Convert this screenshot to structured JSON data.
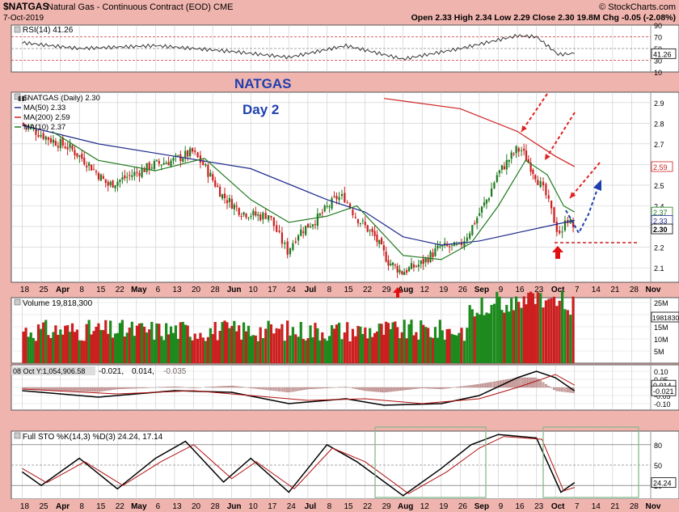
{
  "header": {
    "symbol": "$NATGAS",
    "name": "Natural Gas - Continuous Contract (EOD)",
    "exchange": "CME",
    "date": "7-Oct-2019",
    "copyright": "© StockCharts.com",
    "open_label": "Open",
    "open": "2.33",
    "high_label": "High",
    "high": "2.34",
    "low_label": "Low",
    "low": "2.29",
    "close_label": "Close",
    "close": "2.30",
    "volume": "19.8M",
    "chg_label": "Chg",
    "chg": "-0.05 (-2.08%)"
  },
  "rsi_panel": {
    "label": "RSI(14) 41.26",
    "ticks": [
      "90",
      "70",
      "50",
      "30",
      "10"
    ],
    "ticks_half": [
      "80",
      "60",
      "40",
      "20"
    ],
    "current": "41.26"
  },
  "price_panel": {
    "annotation_title": "NATGAS",
    "annotation_sub": "Day 2",
    "legend": [
      {
        "label": "$NATGAS (Daily) 2.30",
        "color": "#222222"
      },
      {
        "label": "MA(50) 2.33",
        "color": "#1f2a8c"
      },
      {
        "label": "MA(200) 2.59",
        "color": "#cc2222"
      },
      {
        "label": "MA(10) 2.37",
        "color": "#1e7a1e"
      }
    ],
    "ticks": [
      "2.9",
      "2.8",
      "2.7",
      "2.6",
      "2.5",
      "2.4",
      "2.3",
      "2.2",
      "2.1"
    ],
    "tags": [
      {
        "value": "2.59",
        "color": "#cc2222"
      },
      {
        "value": "2.37",
        "color": "#1e7a1e"
      },
      {
        "value": "2.33",
        "color": "#1f2a8c"
      },
      {
        "value": "2.30",
        "color": "#000000"
      }
    ]
  },
  "x_axis": {
    "labels": [
      "18",
      "25",
      "Apr",
      "8",
      "15",
      "22",
      "May",
      "6",
      "13",
      "20",
      "28",
      "Jun",
      "10",
      "17",
      "24",
      "Jul",
      "8",
      "15",
      "22",
      "29",
      "Aug",
      "12",
      "19",
      "26",
      "Sep",
      "9",
      "16",
      "23",
      "Oct",
      "7",
      "14",
      "21",
      "28",
      "Nov"
    ]
  },
  "volume_panel": {
    "label": "Volume 19,818,300",
    "ticks": [
      "25M",
      "20M",
      "15M",
      "10M",
      "5M"
    ],
    "current": "19818300"
  },
  "macd_panel": {
    "readout": "08 Oct Y:1,054,906.58",
    "values": [
      "-0.021",
      "0.014",
      "-0.035"
    ],
    "ticks": [
      "0.10",
      "0.05",
      "0.00",
      "-0.05",
      "-0.10"
    ],
    "tags": [
      "0.014",
      "-0.021"
    ]
  },
  "sto_panel": {
    "label": "Full STO %K(14,3) %D(3) 24.24, 17.14",
    "ticks": [
      "80",
      "50",
      "20"
    ],
    "current": "24.24"
  },
  "chart_data": {
    "type": "line",
    "title": "$NATGAS Natural Gas - Continuous Contract (EOD) CME",
    "ylim": [
      2.03,
      2.95
    ],
    "x_start": "2019-03-18",
    "x_end": "2019-11-04",
    "close_series": [
      [
        "2019-03-18",
        2.8
      ],
      [
        "2019-03-29",
        2.72
      ],
      [
        "2019-04-05",
        2.68
      ],
      [
        "2019-04-12",
        2.6
      ],
      [
        "2019-04-19",
        2.5
      ],
      [
        "2019-04-26",
        2.54
      ],
      [
        "2019-05-06",
        2.6
      ],
      [
        "2019-05-13",
        2.62
      ],
      [
        "2019-05-20",
        2.66
      ],
      [
        "2019-05-24",
        2.6
      ],
      [
        "2019-05-31",
        2.45
      ],
      [
        "2019-06-07",
        2.37
      ],
      [
        "2019-06-14",
        2.35
      ],
      [
        "2019-06-17",
        2.36
      ],
      [
        "2019-06-21",
        2.25
      ],
      [
        "2019-06-24",
        2.18
      ],
      [
        "2019-06-28",
        2.27
      ],
      [
        "2019-07-05",
        2.34
      ],
      [
        "2019-07-12",
        2.44
      ],
      [
        "2019-07-15",
        2.44
      ],
      [
        "2019-07-19",
        2.35
      ],
      [
        "2019-07-26",
        2.25
      ],
      [
        "2019-07-31",
        2.13
      ],
      [
        "2019-08-05",
        2.08
      ],
      [
        "2019-08-12",
        2.12
      ],
      [
        "2019-08-19",
        2.2
      ],
      [
        "2019-08-26",
        2.2
      ],
      [
        "2019-08-30",
        2.28
      ],
      [
        "2019-09-06",
        2.45
      ],
      [
        "2019-09-09",
        2.55
      ],
      [
        "2019-09-16",
        2.67
      ],
      [
        "2019-09-18",
        2.67
      ],
      [
        "2019-09-23",
        2.55
      ],
      [
        "2019-09-27",
        2.45
      ],
      [
        "2019-10-01",
        2.29
      ],
      [
        "2019-10-03",
        2.26
      ],
      [
        "2019-10-04",
        2.35
      ],
      [
        "2019-10-07",
        2.3
      ]
    ],
    "series": [
      {
        "name": "MA(50) 2.33",
        "values": [
          [
            "2019-03-18",
            2.79
          ],
          [
            "2019-04-15",
            2.7
          ],
          [
            "2019-05-13",
            2.64
          ],
          [
            "2019-06-10",
            2.58
          ],
          [
            "2019-07-08",
            2.43
          ],
          [
            "2019-07-22",
            2.37
          ],
          [
            "2019-08-05",
            2.25
          ],
          [
            "2019-08-19",
            2.21
          ],
          [
            "2019-09-02",
            2.23
          ],
          [
            "2019-09-16",
            2.27
          ],
          [
            "2019-09-30",
            2.31
          ],
          [
            "2019-10-07",
            2.33
          ]
        ]
      },
      {
        "name": "MA(200) 2.59",
        "values": [
          [
            "2019-07-29",
            2.92
          ],
          [
            "2019-08-26",
            2.87
          ],
          [
            "2019-09-16",
            2.76
          ],
          [
            "2019-09-30",
            2.64
          ],
          [
            "2019-10-07",
            2.59
          ]
        ]
      },
      {
        "name": "MA(10) 2.37",
        "values": [
          [
            "2019-03-29",
            2.76
          ],
          [
            "2019-04-15",
            2.62
          ],
          [
            "2019-05-06",
            2.57
          ],
          [
            "2019-05-24",
            2.63
          ],
          [
            "2019-06-10",
            2.43
          ],
          [
            "2019-06-24",
            2.32
          ],
          [
            "2019-07-08",
            2.35
          ],
          [
            "2019-07-19",
            2.4
          ],
          [
            "2019-08-05",
            2.16
          ],
          [
            "2019-08-19",
            2.14
          ],
          [
            "2019-08-30",
            2.22
          ],
          [
            "2019-09-09",
            2.4
          ],
          [
            "2019-09-19",
            2.62
          ],
          [
            "2019-09-27",
            2.55
          ],
          [
            "2019-10-03",
            2.4
          ],
          [
            "2019-10-07",
            2.37
          ]
        ]
      }
    ],
    "volume_range": [
      0,
      27000000
    ],
    "macd_range": [
      -0.14,
      0.14
    ],
    "macd_line": [
      [
        "2019-03-18",
        -0.02
      ],
      [
        "2019-04-15",
        -0.06
      ],
      [
        "2019-05-13",
        -0.02
      ],
      [
        "2019-06-03",
        -0.03
      ],
      [
        "2019-06-24",
        -0.1
      ],
      [
        "2019-07-15",
        -0.07
      ],
      [
        "2019-07-29",
        -0.11
      ],
      [
        "2019-08-19",
        -0.1
      ],
      [
        "2019-09-02",
        -0.05
      ],
      [
        "2019-09-16",
        0.06
      ],
      [
        "2019-09-23",
        0.1
      ],
      [
        "2019-09-30",
        0.06
      ],
      [
        "2019-10-07",
        -0.021
      ]
    ],
    "macd_signal": [
      [
        "2019-03-18",
        -0.01
      ],
      [
        "2019-04-22",
        -0.04
      ],
      [
        "2019-05-20",
        -0.02
      ],
      [
        "2019-06-10",
        -0.05
      ],
      [
        "2019-07-01",
        -0.08
      ],
      [
        "2019-07-22",
        -0.07
      ],
      [
        "2019-08-12",
        -0.1
      ],
      [
        "2019-09-02",
        -0.07
      ],
      [
        "2019-09-16",
        0.0
      ],
      [
        "2019-09-30",
        0.08
      ],
      [
        "2019-10-07",
        0.014
      ]
    ],
    "sto_range": [
      0,
      100
    ],
    "sto_k": [
      [
        "2019-03-18",
        40
      ],
      [
        "2019-03-25",
        20
      ],
      [
        "2019-04-08",
        60
      ],
      [
        "2019-04-22",
        15
      ],
      [
        "2019-05-06",
        60
      ],
      [
        "2019-05-17",
        85
      ],
      [
        "2019-05-31",
        25
      ],
      [
        "2019-06-10",
        60
      ],
      [
        "2019-06-24",
        10
      ],
      [
        "2019-07-08",
        80
      ],
      [
        "2019-07-19",
        55
      ],
      [
        "2019-08-05",
        5
      ],
      [
        "2019-08-19",
        45
      ],
      [
        "2019-08-30",
        80
      ],
      [
        "2019-09-09",
        95
      ],
      [
        "2019-09-23",
        90
      ],
      [
        "2019-10-02",
        10
      ],
      [
        "2019-10-07",
        24.24
      ]
    ],
    "sto_d": [
      [
        "2019-03-18",
        45
      ],
      [
        "2019-03-27",
        24
      ],
      [
        "2019-04-10",
        55
      ],
      [
        "2019-04-24",
        20
      ],
      [
        "2019-05-08",
        55
      ],
      [
        "2019-05-20",
        80
      ],
      [
        "2019-06-03",
        30
      ],
      [
        "2019-06-12",
        55
      ],
      [
        "2019-06-26",
        15
      ],
      [
        "2019-07-10",
        75
      ],
      [
        "2019-07-22",
        55
      ],
      [
        "2019-08-07",
        8
      ],
      [
        "2019-08-21",
        40
      ],
      [
        "2019-09-02",
        75
      ],
      [
        "2019-09-11",
        92
      ],
      [
        "2019-09-25",
        88
      ],
      [
        "2019-10-03",
        12
      ],
      [
        "2019-10-07",
        17.14
      ]
    ],
    "rsi_range": [
      10,
      90
    ],
    "rsi_series": [
      [
        "2019-03-18",
        60
      ],
      [
        "2019-04-08",
        50
      ],
      [
        "2019-05-06",
        55
      ],
      [
        "2019-06-03",
        45
      ],
      [
        "2019-06-24",
        35
      ],
      [
        "2019-07-15",
        55
      ],
      [
        "2019-08-05",
        32
      ],
      [
        "2019-08-26",
        50
      ],
      [
        "2019-09-16",
        72
      ],
      [
        "2019-09-23",
        70
      ],
      [
        "2019-10-01",
        40
      ],
      [
        "2019-10-07",
        41.26
      ]
    ]
  }
}
